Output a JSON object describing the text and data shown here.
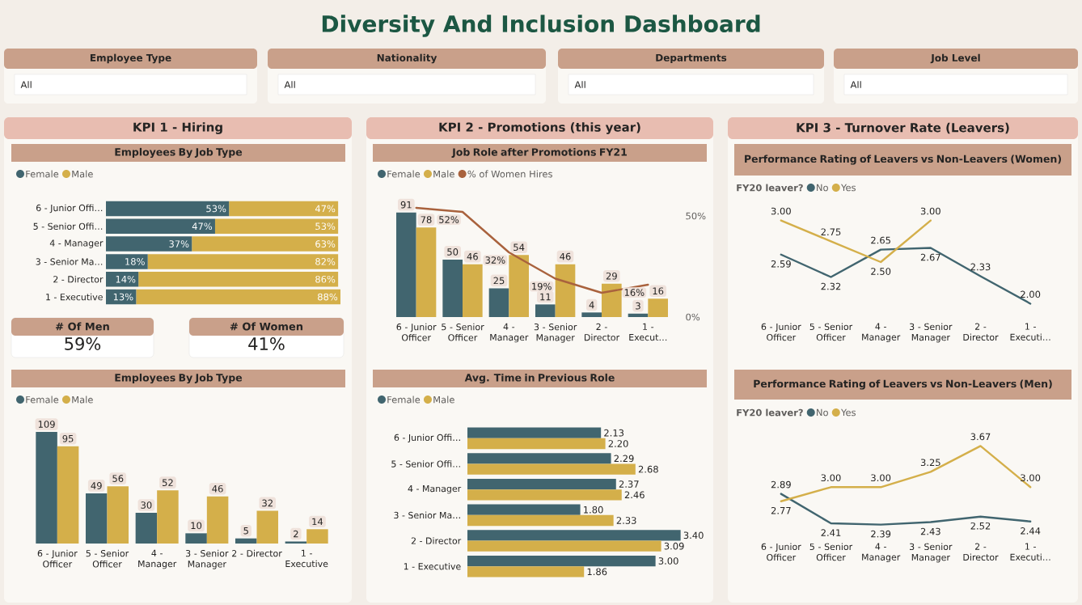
{
  "chart_data": [
    {
      "type": "other",
      "title": "Diversity And Inclusion Dashboard",
      "annotations": [
        "Employee Type",
        "All",
        "Nationality",
        "All",
        "Departments",
        "All",
        "Job Level",
        "All"
      ]
    },
    {
      "type": "other",
      "title": "KPI 1 - Hiring"
    },
    {
      "type": "bar",
      "title": "Employees By Job Type",
      "orientation": "horizontal",
      "stacked": true,
      "legend": "top left",
      "categories": [
        "6 - Junior Offi…",
        "5 - Senior Offi…",
        "4 - Manager",
        "3 - Senior Ma…",
        "2 - Director",
        "1 - Executive"
      ],
      "series": [
        {
          "name": "Female",
          "color": "#41656f",
          "values": [
            53,
            47,
            37,
            18,
            14,
            13
          ],
          "value_labels": [
            "53%",
            "47%",
            "37%",
            "18%",
            "14%",
            "13%"
          ]
        },
        {
          "name": "Male",
          "color": "#d4af4a",
          "values": [
            47,
            53,
            63,
            82,
            86,
            88
          ],
          "value_labels": [
            "47%",
            "53%",
            "63%",
            "82%",
            "86%",
            "88%"
          ]
        }
      ]
    },
    {
      "type": "other",
      "title": "# Of Men",
      "annotations": [
        "59%"
      ]
    },
    {
      "type": "other",
      "title": "# Of Women",
      "annotations": [
        "41%"
      ]
    },
    {
      "type": "bar",
      "title": "Employees By Job Type",
      "legend": "top left",
      "data_labels": true,
      "categories": [
        "6 - Junior Officer",
        "5 - Senior Officer",
        "4 - Manager",
        "3 - Senior Manager",
        "2 - Director",
        "1 - Executive"
      ],
      "series": [
        {
          "name": "Female",
          "color": "#41656f",
          "values": [
            109,
            49,
            30,
            10,
            5,
            2
          ]
        },
        {
          "name": "Male",
          "color": "#d4af4a",
          "values": [
            95,
            56,
            52,
            46,
            32,
            14
          ]
        }
      ]
    },
    {
      "type": "other",
      "title": "KPI 2 - Promotions (this year)"
    },
    {
      "type": "bar",
      "title": "Job Role after Promotions FY21",
      "legend": "top left",
      "data_labels": true,
      "categories": [
        "6 - Junior Officer",
        "5 - Senior Officer",
        "4 - Manager",
        "3 - Senior Manager",
        "2 - Director",
        "1 - Execut…"
      ],
      "y2lim": [
        0,
        60
      ],
      "y2ticks": [
        {
          "value": 0,
          "label": "0%"
        },
        {
          "value": 50,
          "label": "50%"
        }
      ],
      "series": [
        {
          "name": "Female",
          "color": "#41656f",
          "values": [
            91,
            50,
            25,
            11,
            4,
            3
          ]
        },
        {
          "name": "Male",
          "color": "#d4af4a",
          "values": [
            78,
            46,
            54,
            46,
            29,
            16
          ]
        },
        {
          "name": "% of Women Hires",
          "type": "line",
          "axis": "y2",
          "color": "#a9623d",
          "values": [
            54,
            52,
            32,
            19,
            12,
            16
          ],
          "value_labels": [
            null,
            "52%",
            "32%",
            "19%",
            null,
            "16%"
          ]
        }
      ]
    },
    {
      "type": "bar",
      "title": "Avg. Time in Previous Role",
      "orientation": "horizontal",
      "legend": "top left",
      "categories": [
        "6 - Junior Offi…",
        "5 - Senior Offi…",
        "4 - Manager",
        "3 - Senior Ma…",
        "2 - Director",
        "1 - Executive"
      ],
      "series": [
        {
          "name": "Female",
          "color": "#41656f",
          "values": [
            2.13,
            2.29,
            2.37,
            1.8,
            3.4,
            3.0
          ],
          "value_labels": [
            "2.13",
            "2.29",
            "2.37",
            "1.80",
            "3.40",
            "3.00"
          ]
        },
        {
          "name": "Male",
          "color": "#d4af4a",
          "values": [
            2.2,
            2.68,
            2.46,
            2.33,
            3.09,
            1.86
          ],
          "value_labels": [
            "2.20",
            "2.68",
            "2.46",
            "2.33",
            "3.09",
            "1.86"
          ]
        }
      ]
    },
    {
      "type": "other",
      "title": "KPI 3 - Turnover Rate (Leavers)"
    },
    {
      "type": "line",
      "title": "Performance Rating of Leavers vs Non-Leavers (Women)",
      "legend": "top left",
      "legend_title": "FY20 leaver?",
      "categories": [
        "6 - Junior Officer",
        "5 - Senior Officer",
        "4 - Manager",
        "3 - Senior Manager",
        "2 - Director",
        "1 - Executi…"
      ],
      "series": [
        {
          "name": "No",
          "color": "#41656f",
          "values": [
            2.59,
            2.32,
            2.65,
            2.67,
            2.33,
            2.0
          ],
          "value_labels": [
            "2.59",
            "2.32",
            "2.65",
            "2.67",
            "2.33",
            "2.00"
          ]
        },
        {
          "name": "Yes",
          "color": "#d4af4a",
          "values": [
            3.0,
            2.75,
            2.5,
            3.0,
            null,
            null
          ],
          "value_labels": [
            "3.00",
            "2.75",
            "2.50",
            "3.00",
            null,
            null
          ]
        }
      ]
    },
    {
      "type": "line",
      "title": "Performance Rating of Leavers vs Non-Leavers (Men)",
      "legend": "top left",
      "legend_title": "FY20 leaver?",
      "categories": [
        "6 - Junior Officer",
        "5 - Senior Officer",
        "4 - Manager",
        "3 - Senior Manager",
        "2 - Director",
        "1 - Executi…"
      ],
      "series": [
        {
          "name": "No",
          "color": "#41656f",
          "values": [
            2.89,
            2.41,
            2.39,
            2.43,
            2.52,
            2.44
          ],
          "value_labels": [
            "2.89",
            "2.41",
            "2.39",
            "2.43",
            "2.52",
            "2.44"
          ]
        },
        {
          "name": "Yes",
          "color": "#d4af4a",
          "values": [
            2.77,
            3.0,
            3.0,
            3.25,
            3.67,
            3.0
          ],
          "value_labels": [
            "2.77",
            "3.00",
            "3.00",
            "3.25",
            "3.67",
            "3.00"
          ]
        }
      ]
    }
  ]
}
